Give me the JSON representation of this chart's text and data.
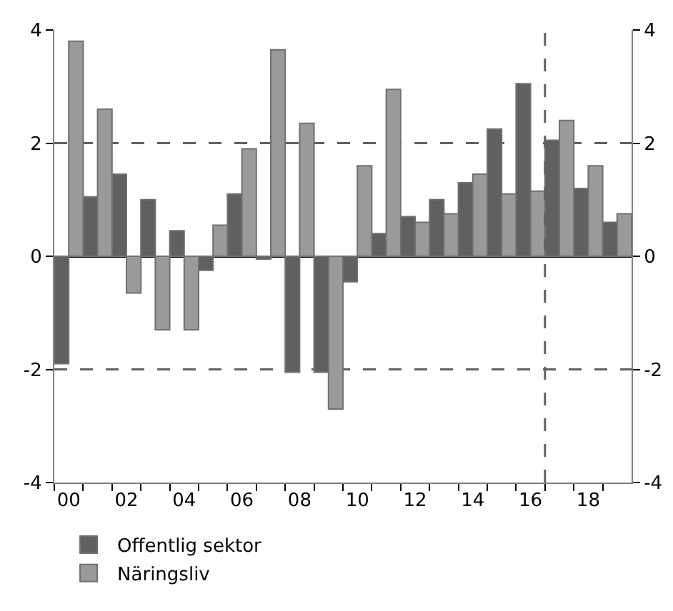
{
  "chart_data": {
    "type": "bar",
    "x": [
      2000,
      2001,
      2002,
      2003,
      2004,
      2005,
      2006,
      2007,
      2008,
      2009,
      2010,
      2011,
      2012,
      2013,
      2014,
      2015,
      2016,
      2017,
      2018,
      2019
    ],
    "series": [
      {
        "name": "Offentlig sektor",
        "color": "#606060",
        "values": [
          -1.9,
          1.05,
          1.45,
          1.0,
          0.45,
          -0.25,
          1.1,
          -0.05,
          -2.05,
          -2.05,
          -0.45,
          0.4,
          0.7,
          1.0,
          1.3,
          2.25,
          3.05,
          2.05,
          1.2,
          0.6
        ]
      },
      {
        "name": "Näringsliv",
        "color": "#9a9a9a",
        "values": [
          3.8,
          2.6,
          -0.65,
          -1.3,
          -1.3,
          0.55,
          1.9,
          3.65,
          2.35,
          -2.7,
          1.6,
          2.95,
          0.6,
          0.75,
          1.45,
          1.1,
          1.15,
          2.4,
          1.6,
          0.75
        ]
      }
    ],
    "xlim": [
      1999.5,
      2019.5
    ],
    "xticks": [
      {
        "value": 2000,
        "label": "00"
      },
      {
        "value": 2002,
        "label": "02"
      },
      {
        "value": 2004,
        "label": "04"
      },
      {
        "value": 2006,
        "label": "06"
      },
      {
        "value": 2008,
        "label": "08"
      },
      {
        "value": 2010,
        "label": "10"
      },
      {
        "value": 2012,
        "label": "12"
      },
      {
        "value": 2014,
        "label": "14"
      },
      {
        "value": 2016,
        "label": "16"
      },
      {
        "value": 2018,
        "label": "18"
      },
      {
        "value": 1999.5,
        "label": null
      },
      {
        "value": 2000.5,
        "label": null
      },
      {
        "value": 2001.5,
        "label": null
      },
      {
        "value": 2002.5,
        "label": null
      },
      {
        "value": 2003.5,
        "label": null
      },
      {
        "value": 2004.5,
        "label": null
      },
      {
        "value": 2005.5,
        "label": null
      },
      {
        "value": 2006.5,
        "label": null
      },
      {
        "value": 2007.5,
        "label": null
      },
      {
        "value": 2008.5,
        "label": null
      },
      {
        "value": 2009.5,
        "label": null
      },
      {
        "value": 2010.5,
        "label": null
      },
      {
        "value": 2011.5,
        "label": null
      },
      {
        "value": 2012.5,
        "label": null
      },
      {
        "value": 2013.5,
        "label": null
      },
      {
        "value": 2014.5,
        "label": null
      },
      {
        "value": 2015.5,
        "label": null
      },
      {
        "value": 2016.5,
        "label": null
      },
      {
        "value": 2017.5,
        "label": null
      },
      {
        "value": 2018.5,
        "label": null
      }
    ],
    "ylim": [
      -4,
      4
    ],
    "yticks": [
      -4,
      -2,
      0,
      2,
      4
    ],
    "y2lim": [
      -4,
      4
    ],
    "y2ticks": [
      -4,
      -2,
      0,
      2,
      4
    ],
    "ref_lines": [
      {
        "axis": "x",
        "value": 2016.5,
        "color": "#606060",
        "line_style": "dashed"
      }
    ],
    "grid": "y",
    "legend": "bottom left"
  }
}
